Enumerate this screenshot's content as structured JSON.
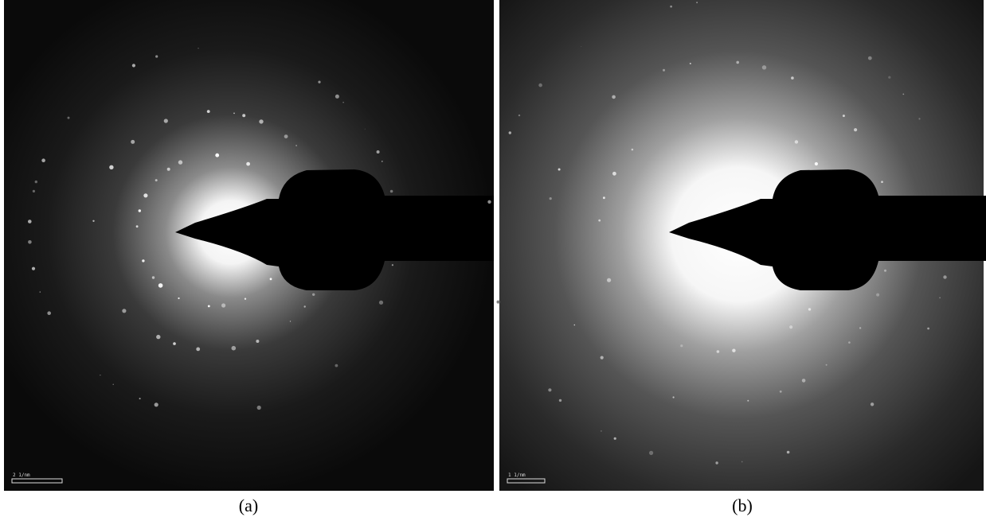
{
  "panels": [
    {
      "scale_label": "2 1/nm",
      "caption": "(a)"
    },
    {
      "scale_label": "1 1/nm",
      "caption": "(b)"
    }
  ]
}
